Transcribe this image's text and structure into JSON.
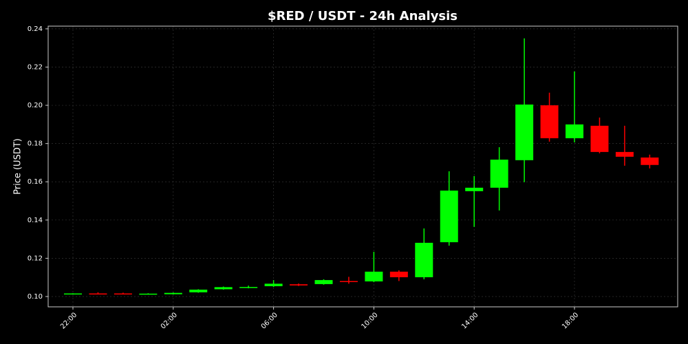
{
  "chart_data": {
    "type": "candlestick",
    "title": "$RED / USDT - 24h Analysis",
    "y_label": "Price (USDT)",
    "categories": [
      "22:00",
      null,
      null,
      null,
      "02:00",
      null,
      null,
      null,
      "06:00",
      null,
      null,
      null,
      "10:00",
      null,
      null,
      null,
      "14:00",
      null,
      null,
      null,
      "18:00",
      null,
      null,
      null
    ],
    "open": [
      0.1015,
      0.1016,
      0.1016,
      0.1012,
      0.1012,
      0.1022,
      0.1038,
      0.1045,
      0.1054,
      0.1064,
      0.1065,
      0.1081,
      0.1079,
      0.113,
      0.1101,
      0.1284,
      0.1551,
      0.1569,
      0.1713,
      0.2,
      0.1828,
      0.1893,
      0.1756,
      0.1727
    ],
    "high": [
      0.1017,
      0.1022,
      0.102,
      0.1017,
      0.1021,
      0.1038,
      0.1052,
      0.1057,
      0.1086,
      0.1068,
      0.109,
      0.1103,
      0.1234,
      0.1137,
      0.1356,
      0.1655,
      0.163,
      0.1781,
      0.235,
      0.2066,
      0.2177,
      0.1936,
      0.1893,
      0.1742
    ],
    "low": [
      0.1014,
      0.1012,
      0.1012,
      0.1011,
      0.1011,
      0.102,
      0.1036,
      0.1043,
      0.105,
      0.1055,
      0.1062,
      0.1067,
      0.1075,
      0.1081,
      0.109,
      0.1266,
      0.1364,
      0.145,
      0.1598,
      0.181,
      0.1806,
      0.1749,
      0.1684,
      0.167
    ],
    "close": [
      0.1016,
      0.1013,
      0.1013,
      0.1015,
      0.1019,
      0.1036,
      0.1049,
      0.105,
      0.1067,
      0.1058,
      0.1086,
      0.1076,
      0.113,
      0.1101,
      0.1281,
      0.1554,
      0.1569,
      0.1716,
      0.2004,
      0.1828,
      0.19,
      0.1756,
      0.1731,
      0.1688
    ],
    "up_color": "#00ff00",
    "down_color": "#ff0000",
    "ylim": [
      0.0946,
      0.2414
    ],
    "yticks": [
      {
        "value": 0.1,
        "label": "0.10"
      },
      0.12,
      0.14,
      0.16,
      0.18,
      {
        "value": 0.2,
        "label": "0.20"
      },
      0.22,
      0.24
    ],
    "grid": true
  }
}
